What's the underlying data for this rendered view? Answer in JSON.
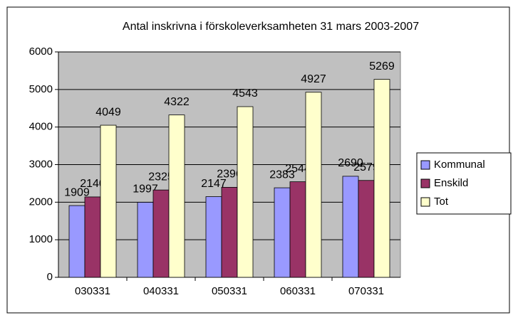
{
  "chart_data": {
    "type": "bar",
    "title": "Antal inskrivna i förskoleverksamheten 31 mars 2003-2007",
    "categories": [
      "030331",
      "040331",
      "050331",
      "060331",
      "070331"
    ],
    "series": [
      {
        "name": "Kommunal",
        "color": "#9999ff",
        "values": [
          1909,
          1997,
          2147,
          2383,
          2690
        ]
      },
      {
        "name": "Enskild",
        "color": "#993366",
        "values": [
          2140,
          2325,
          2396,
          2544,
          2579
        ]
      },
      {
        "name": "Tot",
        "color": "#ffffcc",
        "values": [
          4049,
          4322,
          4543,
          4927,
          5269
        ]
      }
    ],
    "ylim": [
      0,
      6000
    ],
    "yticks": [
      0,
      1000,
      2000,
      3000,
      4000,
      5000,
      6000
    ],
    "grid": true,
    "legend": "right",
    "plot_background": "#c0c0c0"
  }
}
